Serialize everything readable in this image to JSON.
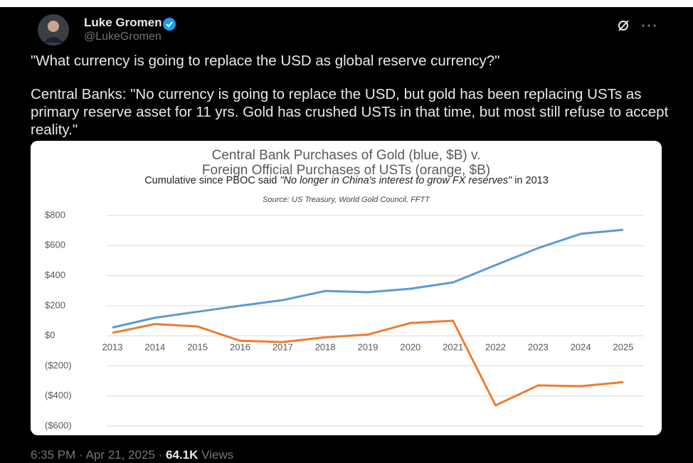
{
  "tweet": {
    "author": {
      "name": "Luke Gromen",
      "handle": "@LukeGromen"
    },
    "text": {
      "line1": "\"What currency is going to replace the USD as global reserve currency?\"",
      "paragraph2": "Central Banks: \"No currency is going to replace the USD, but gold has been replacing USTs as primary reserve asset for 11 yrs.  Gold has crushed USTs in that time, but most still refuse to accept reality.\""
    },
    "footer": {
      "time": "6:35 PM",
      "separator": "·",
      "date": "Apr 21, 2025",
      "views_count": "64.1K",
      "views_label": "Views"
    }
  },
  "chart_data": {
    "type": "line",
    "title_line1": "Central Bank Purchases of Gold (blue, $B) v.",
    "title_line2": "Foreign Official Purchases of USTs (orange, $B)",
    "subtitle_prefix": "Cumulative since PBOC said",
    "subtitle_quote": "\"No longer in China's interest to grow FX reserves\"",
    "subtitle_suffix": "in 2013",
    "source": "Source: US Treasury, World Gold Council, FFTT",
    "categories": [
      "2013",
      "2014",
      "2015",
      "2016",
      "2017",
      "2018",
      "2019",
      "2020",
      "2021",
      "2022",
      "2023",
      "2024",
      "2025"
    ],
    "series": [
      {
        "color": "#5b9bd5",
        "values": [
          55,
          120,
          160,
          200,
          237,
          298,
          290,
          313,
          355,
          470,
          583,
          678,
          705
        ]
      },
      {
        "color": "#ed7d31",
        "values": [
          20,
          78,
          62,
          -33,
          -42,
          -10,
          8,
          85,
          100,
          -463,
          -330,
          -335,
          -308
        ]
      }
    ],
    "ylim": [
      -600,
      800
    ],
    "yticks": [
      {
        "value": 800,
        "label": "$800"
      },
      {
        "value": 600,
        "label": "$600"
      },
      {
        "value": 400,
        "label": "$400"
      },
      {
        "value": 200,
        "label": "$200"
      },
      {
        "value": 0,
        "label": "$0"
      },
      {
        "value": -200,
        "label": "($200)"
      },
      {
        "value": -400,
        "label": "($400)"
      },
      {
        "value": -600,
        "label": "($600)"
      }
    ],
    "grid": true
  }
}
